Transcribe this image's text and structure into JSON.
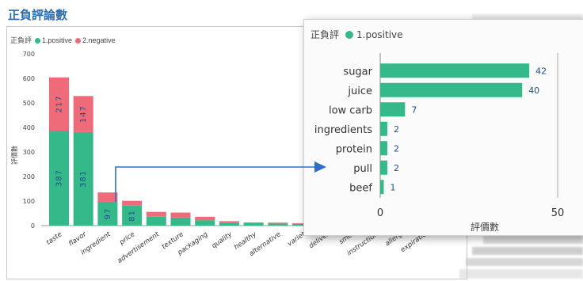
{
  "colors": {
    "positive": "#35b98b",
    "negative": "#f06b7a",
    "title": "#2b6cb0",
    "value_label": "#1f4f8b",
    "connector": "#2f6fc7"
  },
  "title": "正負評論數",
  "chart_data": [
    {
      "type": "bar",
      "stacked": true,
      "legend": {
        "title": "正負評",
        "placement": "top-left"
      },
      "categories": [
        "taste",
        "flavor",
        "ingredient",
        "price",
        "advertisement",
        "texture",
        "packaging",
        "quality",
        "healthy",
        "alternative",
        "variety",
        "delivery",
        "smell",
        "instructions",
        "allergy",
        "expiration"
      ],
      "category_labels": [
        "taste",
        "flavor",
        "ingredient",
        "price",
        "advertisement",
        "texture",
        "packaging",
        "quality",
        "healthy",
        "alternative",
        "variet",
        "deliver",
        "smel",
        "instruction",
        "allerg",
        "expiratio"
      ],
      "series": [
        {
          "name": "1.positive",
          "color": "#35b98b",
          "values": [
            387,
            381,
            97,
            81,
            36,
            33,
            22,
            12,
            10,
            8,
            7,
            6,
            5,
            4,
            3,
            2
          ]
        },
        {
          "name": "2.negative",
          "color": "#f06b7a",
          "values": [
            217,
            147,
            38,
            20,
            20,
            20,
            14,
            6,
            3,
            4,
            3,
            2,
            2,
            2,
            1,
            1
          ]
        }
      ],
      "data_labels": [
        {
          "category": "taste",
          "series": "1.positive",
          "text": "387"
        },
        {
          "category": "taste",
          "series": "2.negative",
          "text": "217"
        },
        {
          "category": "flavor",
          "series": "1.positive",
          "text": "381"
        },
        {
          "category": "flavor",
          "series": "2.negative",
          "text": "147"
        },
        {
          "category": "ingredient",
          "series": "1.positive",
          "text": "97"
        },
        {
          "category": "price",
          "series": "1.positive",
          "text": "81"
        }
      ],
      "ylabel": "評價數",
      "ylim": [
        0,
        700
      ],
      "yticks": [
        0,
        100,
        200,
        300,
        400,
        500,
        600,
        700
      ],
      "grid": false
    },
    {
      "type": "bar",
      "orientation": "horizontal",
      "legend": {
        "title": "正負評",
        "placement": "top-left"
      },
      "categories": [
        "sugar",
        "juice",
        "low carb",
        "ingredients",
        "protein",
        "pull",
        "beef"
      ],
      "series": [
        {
          "name": "1.positive",
          "color": "#35b98b",
          "values": [
            42,
            40,
            7,
            2,
            2,
            2,
            1
          ]
        }
      ],
      "xlabel": "評價數",
      "xlim": [
        0,
        50
      ],
      "xticks": [
        0,
        50
      ]
    }
  ]
}
